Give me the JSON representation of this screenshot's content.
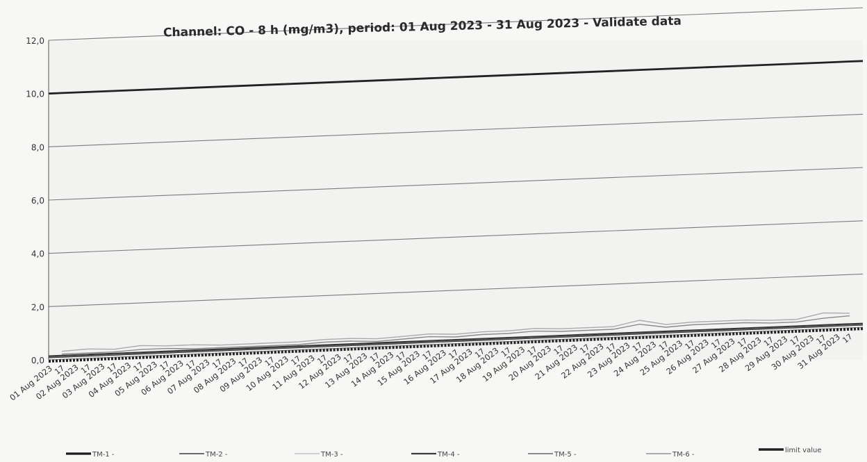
{
  "chart_data": {
    "type": "line",
    "title": "Channel: CO - 8 h (mg/m3), period: 01 Aug 2023 - 31 Aug 2023 - Validate data",
    "xlabel": "",
    "ylabel": "",
    "ylim": [
      0,
      12
    ],
    "y_ticks": [
      "0,0",
      "2,0",
      "4,0",
      "6,0",
      "8,0",
      "10,0",
      "12,0"
    ],
    "grid": true,
    "legend_position": "bottom",
    "categories": [
      "01 Aug 2023",
      "02 Aug 2023",
      "03 Aug 2023",
      "04 Aug 2023",
      "05 Aug 2023",
      "06 Aug 2023",
      "07 Aug 2023",
      "08 Aug 2023",
      "09 Aug 2023",
      "10 Aug 2023",
      "11 Aug 2023",
      "12 Aug 2023",
      "13 Aug 2023",
      "14 Aug 2023",
      "15 Aug 2023",
      "16 Aug 2023",
      "17 Aug 2023",
      "18 Aug 2023",
      "19 Aug 2023",
      "20 Aug 2023",
      "21 Aug 2023",
      "22 Aug 2023",
      "23 Aug 2023",
      "24 Aug 2023",
      "25 Aug 2023",
      "26 Aug 2023",
      "27 Aug 2023",
      "28 Aug 2023",
      "29 Aug 2023",
      "30 Aug 2023",
      "31 Aug 2023"
    ],
    "sub_tick_label": "17",
    "series": [
      {
        "name": "TM-1 -",
        "color": "#1a1a1a",
        "width": 2.6,
        "values": [
          0.1,
          0.1,
          0.1,
          0.1,
          0.1,
          0.1,
          0.1,
          0.1,
          0.1,
          0.1,
          0.1,
          0.1,
          0.1,
          0.1,
          0.1,
          0.1,
          0.1,
          0.1,
          0.1,
          0.1,
          0.1,
          0.1,
          0.1,
          0.1,
          0.1,
          0.1,
          0.1,
          0.1,
          0.1,
          0.1,
          0.1
        ]
      },
      {
        "name": "TM-2 -",
        "color": "#6a6a6a",
        "width": 1.4,
        "values": [
          0.1,
          0.1,
          0.1,
          0.1,
          0.1,
          0.1,
          0.1,
          0.1,
          0.1,
          0.1,
          0.1,
          0.1,
          0.1,
          0.1,
          0.1,
          0.1,
          0.1,
          0.1,
          0.1,
          0.1,
          0.1,
          0.1,
          0.1,
          0.1,
          0.1,
          0.1,
          0.1,
          0.1,
          0.1,
          0.1,
          0.1
        ]
      },
      {
        "name": "TM-3 -",
        "color": "#c8c8c8",
        "width": 1.2,
        "values": [
          0.15,
          0.15,
          0.15,
          0.15,
          0.15,
          0.15,
          0.15,
          0.15,
          0.15,
          0.15,
          0.15,
          0.15,
          0.15,
          0.15,
          0.15,
          0.15,
          0.15,
          0.15,
          0.15,
          0.15,
          0.15,
          0.15,
          0.15,
          0.15,
          0.15,
          0.15,
          0.15,
          0.15,
          0.15,
          0.15,
          0.15
        ]
      },
      {
        "name": "TM-4 -",
        "color": "#3a3a3a",
        "width": 1.6,
        "values": [
          0.15,
          0.15,
          0.15,
          0.15,
          0.15,
          0.15,
          0.15,
          0.15,
          0.15,
          0.15,
          0.15,
          0.15,
          0.15,
          0.15,
          0.15,
          0.15,
          0.15,
          0.15,
          0.15,
          0.15,
          0.15,
          0.15,
          0.15,
          0.15,
          0.15,
          0.15,
          0.15,
          0.15,
          0.15,
          0.15,
          0.15
        ]
      },
      {
        "name": "TM-5 -",
        "color": "#8a8a8a",
        "width": 1.4,
        "values": [
          0.2,
          0.2,
          0.2,
          0.25,
          0.25,
          0.2,
          0.2,
          0.2,
          0.2,
          0.2,
          0.25,
          0.25,
          0.2,
          0.25,
          0.3,
          0.25,
          0.3,
          0.3,
          0.35,
          0.3,
          0.3,
          0.3,
          0.45,
          0.3,
          0.35,
          0.35,
          0.35,
          0.3,
          0.3,
          0.4,
          0.45
        ]
      },
      {
        "name": "TM-6 -",
        "color": "#aaaaaa",
        "width": 1.4,
        "values": [
          0.3,
          0.35,
          0.3,
          0.4,
          0.35,
          0.35,
          0.3,
          0.3,
          0.3,
          0.3,
          0.35,
          0.35,
          0.3,
          0.35,
          0.4,
          0.35,
          0.4,
          0.4,
          0.45,
          0.4,
          0.4,
          0.4,
          0.6,
          0.4,
          0.45,
          0.45,
          0.45,
          0.4,
          0.4,
          0.6,
          0.55
        ]
      },
      {
        "name": "limit value",
        "color": "#222222",
        "width": 2.8,
        "values": [
          10,
          10,
          10,
          10,
          10,
          10,
          10,
          10,
          10,
          10,
          10,
          10,
          10,
          10,
          10,
          10,
          10,
          10,
          10,
          10,
          10,
          10,
          10,
          10,
          10,
          10,
          10,
          10,
          10,
          10,
          10
        ]
      }
    ]
  }
}
